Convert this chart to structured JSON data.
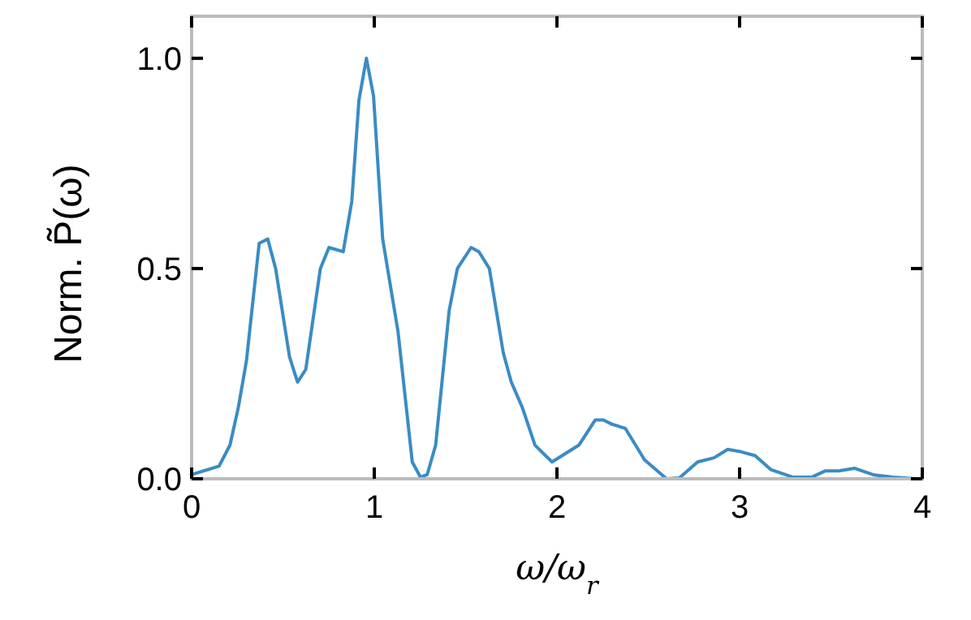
{
  "chart_data": {
    "type": "line",
    "xlabel": "ω/ω$_{r}$",
    "ylabel": "Norm. P̃(ω)",
    "xlim": [
      0,
      4
    ],
    "ylim": [
      0,
      1.1
    ],
    "xticks": [
      0,
      1,
      2,
      3,
      4
    ],
    "yticks": [
      {
        "value": 0,
        "label": "0.0"
      },
      0.5,
      {
        "value": 1,
        "label": "1.0"
      }
    ],
    "grid": false,
    "marker": "none",
    "line_style": "solid",
    "series": [
      {
        "color": "#3a8cc4",
        "x": [
          0,
          0.15,
          0.21,
          0.256,
          0.3,
          0.37,
          0.417,
          0.46,
          0.536,
          0.58,
          0.625,
          0.705,
          0.752,
          0.83,
          0.877,
          0.916,
          0.957,
          0.996,
          1.046,
          1.13,
          1.208,
          1.253,
          1.29,
          1.336,
          1.41,
          1.455,
          1.53,
          1.573,
          1.63,
          1.706,
          1.75,
          1.81,
          1.88,
          1.973,
          2.12,
          2.21,
          2.254,
          2.3,
          2.374,
          2.48,
          2.6,
          2.67,
          2.77,
          2.86,
          2.935,
          3.01,
          3.085,
          3.17,
          3.29,
          3.396,
          3.47,
          3.544,
          3.63,
          3.737,
          3.84,
          3.97
        ],
        "values": [
          0.01,
          0.03,
          0.08,
          0.17,
          0.28,
          0.56,
          0.57,
          0.5,
          0.29,
          0.23,
          0.26,
          0.5,
          0.55,
          0.54,
          0.66,
          0.9,
          1.0,
          0.91,
          0.57,
          0.35,
          0.04,
          0.004,
          0.01,
          0.08,
          0.4,
          0.5,
          0.55,
          0.54,
          0.5,
          0.3,
          0.23,
          0.17,
          0.08,
          0.04,
          0.08,
          0.14,
          0.14,
          0.13,
          0.12,
          0.045,
          0,
          0.002,
          0.04,
          0.05,
          0.07,
          0.064,
          0.055,
          0.022,
          0.004,
          0.004,
          0.019,
          0.019,
          0.025,
          0.009,
          0.004,
          0
        ]
      }
    ]
  }
}
